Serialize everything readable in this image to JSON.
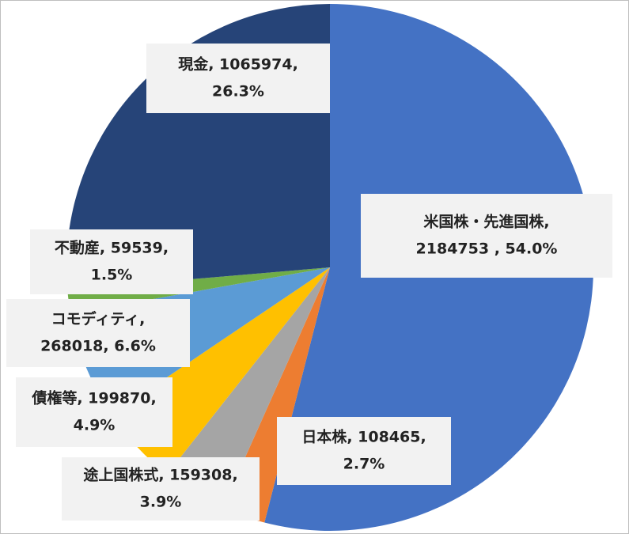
{
  "chart_data": {
    "type": "pie",
    "values": [
      2184753,
      108465,
      159308,
      199870,
      268018,
      59539,
      1065974
    ],
    "value_labels": [
      [
        "米国株・先進国株,",
        "2184753 , 54.0%"
      ],
      [
        "日本株, 108465,",
        "2.7%"
      ],
      [
        "途上国株式, 159308,",
        "3.9%"
      ],
      [
        "債権等, 199870,",
        "4.9%"
      ],
      [
        "コモディティ,",
        "268018, 6.6%"
      ],
      [
        "不動産, 59539,",
        "1.5%"
      ],
      [
        "現金, 1065974,",
        "26.3%"
      ]
    ],
    "colors": [
      "#4472c4",
      "#ed7d31",
      "#a5a5a5",
      "#ffc000",
      "#5b9bd5",
      "#70ad47",
      "#264478"
    ]
  }
}
